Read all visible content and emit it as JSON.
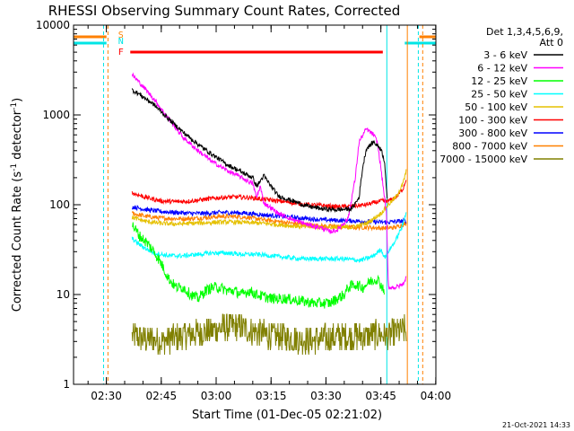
{
  "chart_data": {
    "type": "line",
    "title": "RHESSI Observing Summary Count Rates, Corrected",
    "xlabel": "Start Time (01-Dec-05 02:21:02)",
    "ylabel_main": "Corrected Count Rate (s",
    "ylabel_sup1": "-1",
    "ylabel_mid": " detector",
    "ylabel_sup2": "-1",
    "ylabel_end": ")",
    "yscale": "log",
    "ylim": [
      1,
      10000
    ],
    "xlim_minutes": [
      0,
      99
    ],
    "x_ticks": [
      "02:30",
      "02:45",
      "03:00",
      "03:15",
      "03:30",
      "03:45",
      "04:00"
    ],
    "y_ticks": [
      "1",
      "10",
      "100",
      "1000",
      "10000"
    ],
    "legend_header": [
      "Det 1,3,4,5,6,9,",
      "Att 0"
    ],
    "timestamp": "21-Oct-2021 14:33",
    "flags": [
      {
        "label": "S",
        "color": "#ff8000"
      },
      {
        "label": "N",
        "color": "#00e5e5"
      },
      {
        "label": "F",
        "color": "#ff0000"
      }
    ],
    "series": [
      {
        "name": "3 - 6 keV",
        "color": "#000000",
        "points": [
          [
            16,
            1900
          ],
          [
            18,
            1700
          ],
          [
            22,
            1300
          ],
          [
            26,
            900
          ],
          [
            30,
            640
          ],
          [
            34,
            470
          ],
          [
            38,
            360
          ],
          [
            42,
            280
          ],
          [
            46,
            230
          ],
          [
            49,
            200
          ],
          [
            50,
            160
          ],
          [
            52,
            210
          ],
          [
            54,
            160
          ],
          [
            56,
            125
          ],
          [
            60,
            110
          ],
          [
            64,
            96
          ],
          [
            68,
            90
          ],
          [
            72,
            88
          ],
          [
            76,
            90
          ],
          [
            78,
            120
          ],
          [
            79,
            260
          ],
          [
            80,
            420
          ],
          [
            82,
            500
          ],
          [
            84,
            420
          ],
          [
            85,
            300
          ],
          [
            85.8,
            100
          ]
        ]
      },
      {
        "name": "6 - 12 keV",
        "color": "#ff00ff",
        "points": [
          [
            16,
            2800
          ],
          [
            18,
            2300
          ],
          [
            22,
            1500
          ],
          [
            26,
            900
          ],
          [
            30,
            560
          ],
          [
            34,
            400
          ],
          [
            38,
            300
          ],
          [
            42,
            240
          ],
          [
            46,
            200
          ],
          [
            49,
            170
          ],
          [
            50,
            120
          ],
          [
            51,
            160
          ],
          [
            52,
            105
          ],
          [
            56,
            80
          ],
          [
            60,
            68
          ],
          [
            64,
            60
          ],
          [
            68,
            55
          ],
          [
            70,
            50
          ],
          [
            72,
            52
          ],
          [
            75,
            70
          ],
          [
            77,
            200
          ],
          [
            78,
            500
          ],
          [
            80,
            700
          ],
          [
            82,
            600
          ],
          [
            83,
            500
          ],
          [
            84,
            250
          ],
          [
            85.5,
            80
          ],
          [
            86,
            12
          ],
          [
            88,
            12
          ],
          [
            90,
            13
          ],
          [
            91,
            16
          ]
        ]
      },
      {
        "name": "12 - 25 keV",
        "color": "#00ff00",
        "points": [
          [
            16,
            60
          ],
          [
            18,
            45
          ],
          [
            20,
            38
          ],
          [
            22,
            30
          ],
          [
            24,
            22
          ],
          [
            26,
            15
          ],
          [
            28,
            12
          ],
          [
            30,
            12
          ],
          [
            32,
            10
          ],
          [
            34,
            9
          ],
          [
            36,
            11
          ],
          [
            38,
            12
          ],
          [
            40,
            12
          ],
          [
            42,
            11
          ],
          [
            44,
            11
          ],
          [
            46,
            10
          ],
          [
            48,
            11
          ],
          [
            50,
            10
          ],
          [
            54,
            9
          ],
          [
            58,
            9
          ],
          [
            62,
            8.5
          ],
          [
            66,
            8
          ],
          [
            70,
            8
          ],
          [
            72,
            9
          ],
          [
            74,
            10
          ],
          [
            75,
            12
          ],
          [
            77,
            13
          ],
          [
            79,
            12
          ],
          [
            81,
            14
          ],
          [
            83,
            15
          ],
          [
            85,
            11
          ]
        ]
      },
      {
        "name": "25 - 50 keV",
        "color": "#00ffff",
        "points": [
          [
            16,
            42
          ],
          [
            18,
            36
          ],
          [
            20,
            32
          ],
          [
            22,
            29
          ],
          [
            26,
            27
          ],
          [
            30,
            27
          ],
          [
            34,
            28
          ],
          [
            38,
            29
          ],
          [
            42,
            29
          ],
          [
            46,
            28
          ],
          [
            50,
            28
          ],
          [
            54,
            27
          ],
          [
            58,
            26
          ],
          [
            62,
            25
          ],
          [
            66,
            25
          ],
          [
            70,
            25
          ],
          [
            74,
            25
          ],
          [
            78,
            24
          ],
          [
            80,
            25
          ],
          [
            82,
            27
          ],
          [
            84,
            32
          ],
          [
            85,
            26
          ],
          [
            86,
            30
          ],
          [
            88,
            40
          ],
          [
            90,
            60
          ],
          [
            91,
            90
          ]
        ]
      },
      {
        "name": "50 - 100 keV",
        "color": "#e5c000",
        "points": [
          [
            16,
            72
          ],
          [
            20,
            65
          ],
          [
            24,
            62
          ],
          [
            28,
            61
          ],
          [
            32,
            62
          ],
          [
            36,
            63
          ],
          [
            40,
            64
          ],
          [
            44,
            64
          ],
          [
            48,
            63
          ],
          [
            52,
            62
          ],
          [
            56,
            60
          ],
          [
            60,
            58
          ],
          [
            64,
            57
          ],
          [
            68,
            56
          ],
          [
            72,
            56
          ],
          [
            76,
            56
          ],
          [
            80,
            62
          ],
          [
            82,
            70
          ],
          [
            84,
            80
          ],
          [
            86,
            100
          ],
          [
            88,
            120
          ],
          [
            90,
            170
          ],
          [
            91,
            250
          ]
        ]
      },
      {
        "name": "100 - 300 keV",
        "color": "#ff0000",
        "points": [
          [
            16,
            135
          ],
          [
            20,
            120
          ],
          [
            24,
            110
          ],
          [
            28,
            108
          ],
          [
            32,
            110
          ],
          [
            36,
            115
          ],
          [
            40,
            120
          ],
          [
            44,
            122
          ],
          [
            48,
            120
          ],
          [
            52,
            115
          ],
          [
            56,
            110
          ],
          [
            60,
            105
          ],
          [
            64,
            100
          ],
          [
            68,
            98
          ],
          [
            72,
            95
          ],
          [
            76,
            96
          ],
          [
            80,
            100
          ],
          [
            82,
            105
          ],
          [
            84,
            110
          ],
          [
            86,
            110
          ],
          [
            88,
            120
          ],
          [
            90,
            150
          ],
          [
            91,
            200
          ]
        ]
      },
      {
        "name": "300 - 800 keV",
        "color": "#0000ff",
        "points": [
          [
            16,
            95
          ],
          [
            20,
            88
          ],
          [
            24,
            84
          ],
          [
            28,
            82
          ],
          [
            32,
            80
          ],
          [
            36,
            80
          ],
          [
            40,
            82
          ],
          [
            44,
            82
          ],
          [
            48,
            80
          ],
          [
            52,
            77
          ],
          [
            56,
            75
          ],
          [
            60,
            72
          ],
          [
            64,
            70
          ],
          [
            68,
            68
          ],
          [
            72,
            67
          ],
          [
            76,
            66
          ],
          [
            80,
            65
          ],
          [
            84,
            64
          ],
          [
            86,
            64
          ],
          [
            88,
            65
          ],
          [
            90,
            66
          ],
          [
            91,
            66
          ]
        ]
      },
      {
        "name": "800 - 7000 keV",
        "color": "#ff8000",
        "points": [
          [
            16,
            80
          ],
          [
            20,
            74
          ],
          [
            24,
            71
          ],
          [
            28,
            70
          ],
          [
            32,
            70
          ],
          [
            36,
            72
          ],
          [
            40,
            74
          ],
          [
            44,
            74
          ],
          [
            48,
            72
          ],
          [
            52,
            68
          ],
          [
            56,
            65
          ],
          [
            60,
            62
          ],
          [
            64,
            60
          ],
          [
            68,
            58
          ],
          [
            72,
            57
          ],
          [
            76,
            56
          ],
          [
            80,
            56
          ],
          [
            84,
            55
          ],
          [
            86,
            55
          ],
          [
            88,
            56
          ],
          [
            90,
            60
          ],
          [
            91,
            62
          ]
        ]
      },
      {
        "name": "7000 - 15000 keV",
        "color": "#808000",
        "points": [
          [
            16,
            3.5
          ],
          [
            20,
            3.2
          ],
          [
            24,
            3.0
          ],
          [
            28,
            3.4
          ],
          [
            32,
            3.6
          ],
          [
            36,
            3.8
          ],
          [
            40,
            4.2
          ],
          [
            44,
            4.5
          ],
          [
            48,
            4.0
          ],
          [
            52,
            3.6
          ],
          [
            56,
            3.4
          ],
          [
            60,
            3.2
          ],
          [
            64,
            3.1
          ],
          [
            68,
            3.2
          ],
          [
            72,
            3.4
          ],
          [
            76,
            3.4
          ],
          [
            80,
            3.5
          ],
          [
            84,
            3.6
          ],
          [
            86,
            3.5
          ],
          [
            88,
            3.8
          ],
          [
            90,
            4.0
          ],
          [
            91,
            4.0
          ]
        ]
      }
    ]
  }
}
